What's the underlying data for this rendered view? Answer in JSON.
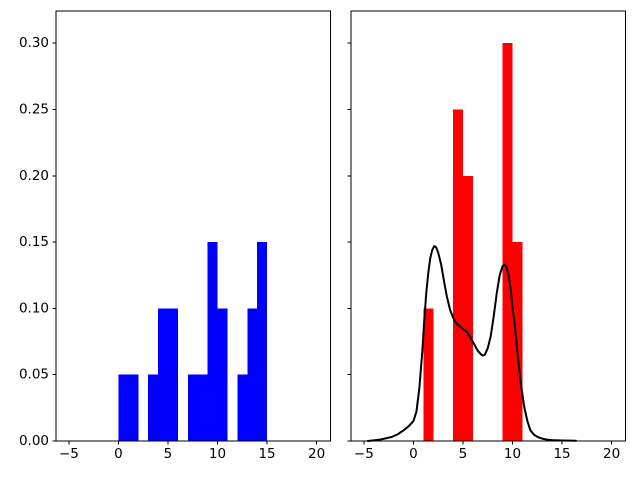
{
  "figure": {
    "background": "#ffffff",
    "text_color": "#000000",
    "spine_color": "#000000"
  },
  "chart_data": [
    {
      "type": "bar",
      "subtype": "density_histogram",
      "panel": "left",
      "title": "",
      "xlabel": "",
      "ylabel": "",
      "grid": false,
      "legend": null,
      "bar_color": "#0000ff",
      "xlim": [
        -6.3,
        21.4
      ],
      "ylim": [
        0,
        0.3243
      ],
      "xticks": [
        -5,
        0,
        5,
        10,
        15,
        20
      ],
      "xtick_labels": [
        "−5",
        "0",
        "5",
        "10",
        "15",
        "20"
      ],
      "yticks": [
        0,
        0.05,
        0.1,
        0.15,
        0.2,
        0.25,
        0.3
      ],
      "ytick_labels": [
        "0.00",
        "0.05",
        "0.10",
        "0.15",
        "0.20",
        "0.25",
        "0.30"
      ],
      "show_ytick_labels": true,
      "bin_width": 1,
      "bars": [
        {
          "x0": 0,
          "x1": 1,
          "height": 0.05
        },
        {
          "x0": 1,
          "x1": 2,
          "height": 0.05
        },
        {
          "x0": 3,
          "x1": 4,
          "height": 0.05
        },
        {
          "x0": 4,
          "x1": 5,
          "height": 0.1
        },
        {
          "x0": 5,
          "x1": 6,
          "height": 0.1
        },
        {
          "x0": 7,
          "x1": 8,
          "height": 0.05
        },
        {
          "x0": 8,
          "x1": 9,
          "height": 0.05
        },
        {
          "x0": 9,
          "x1": 10,
          "height": 0.15
        },
        {
          "x0": 10,
          "x1": 11,
          "height": 0.1
        },
        {
          "x0": 12,
          "x1": 13,
          "height": 0.05
        },
        {
          "x0": 13,
          "x1": 14,
          "height": 0.1
        },
        {
          "x0": 14,
          "x1": 15,
          "height": 0.15
        }
      ]
    },
    {
      "type": "bar",
      "subtype": "density_histogram_with_kde",
      "panel": "right",
      "title": "",
      "xlabel": "",
      "ylabel": "",
      "grid": false,
      "legend": null,
      "bar_color": "#ff0000",
      "line_color": "#000000",
      "xlim": [
        -6.3,
        21.4
      ],
      "ylim": [
        0,
        0.3243
      ],
      "xticks": [
        -5,
        0,
        5,
        10,
        15,
        20
      ],
      "xtick_labels": [
        "−5",
        "0",
        "5",
        "10",
        "15",
        "20"
      ],
      "yticks": [
        0,
        0.05,
        0.1,
        0.15,
        0.2,
        0.25,
        0.3
      ],
      "ytick_labels": [
        "0.00",
        "0.05",
        "0.10",
        "0.15",
        "0.20",
        "0.25",
        "0.30"
      ],
      "show_ytick_labels": false,
      "bin_width": 1,
      "bars": [
        {
          "x0": 1,
          "x1": 2,
          "height": 0.1
        },
        {
          "x0": 4,
          "x1": 5,
          "height": 0.25
        },
        {
          "x0": 5,
          "x1": 6,
          "height": 0.2
        },
        {
          "x0": 9,
          "x1": 10,
          "height": 0.3
        },
        {
          "x0": 10,
          "x1": 11,
          "height": 0.15
        }
      ],
      "kde_curve": {
        "x": [
          -4.6,
          -4.0,
          -3.4,
          -2.8,
          -2.2,
          -1.6,
          -1.0,
          -0.5,
          0.0,
          0.3,
          0.6,
          0.9,
          1.1,
          1.3,
          1.5,
          1.7,
          1.9,
          2.1,
          2.3,
          2.5,
          2.8,
          3.1,
          3.4,
          3.7,
          4.0,
          4.3,
          4.6,
          5.0,
          5.3,
          5.6,
          5.9,
          6.2,
          6.5,
          6.8,
          7.0,
          7.2,
          7.5,
          7.8,
          8.1,
          8.4,
          8.7,
          9.0,
          9.2,
          9.4,
          9.6,
          9.8,
          10.0,
          10.3,
          10.6,
          10.9,
          11.2,
          11.5,
          11.8,
          12.2,
          12.6,
          13.0,
          13.5,
          14.0,
          15.0,
          16.4
        ],
        "y": [
          0.0,
          0.0005,
          0.001,
          0.002,
          0.003,
          0.005,
          0.008,
          0.011,
          0.015,
          0.022,
          0.04,
          0.068,
          0.092,
          0.112,
          0.127,
          0.138,
          0.144,
          0.147,
          0.146,
          0.142,
          0.133,
          0.12,
          0.108,
          0.099,
          0.093,
          0.089,
          0.087,
          0.0845,
          0.083,
          0.08,
          0.076,
          0.072,
          0.068,
          0.0655,
          0.0645,
          0.065,
          0.07,
          0.079,
          0.094,
          0.111,
          0.125,
          0.132,
          0.133,
          0.131,
          0.125,
          0.115,
          0.101,
          0.082,
          0.059,
          0.04,
          0.025,
          0.015,
          0.008,
          0.0045,
          0.0028,
          0.0018,
          0.001,
          0.0007,
          0.0004,
          0.0002
        ]
      }
    }
  ]
}
